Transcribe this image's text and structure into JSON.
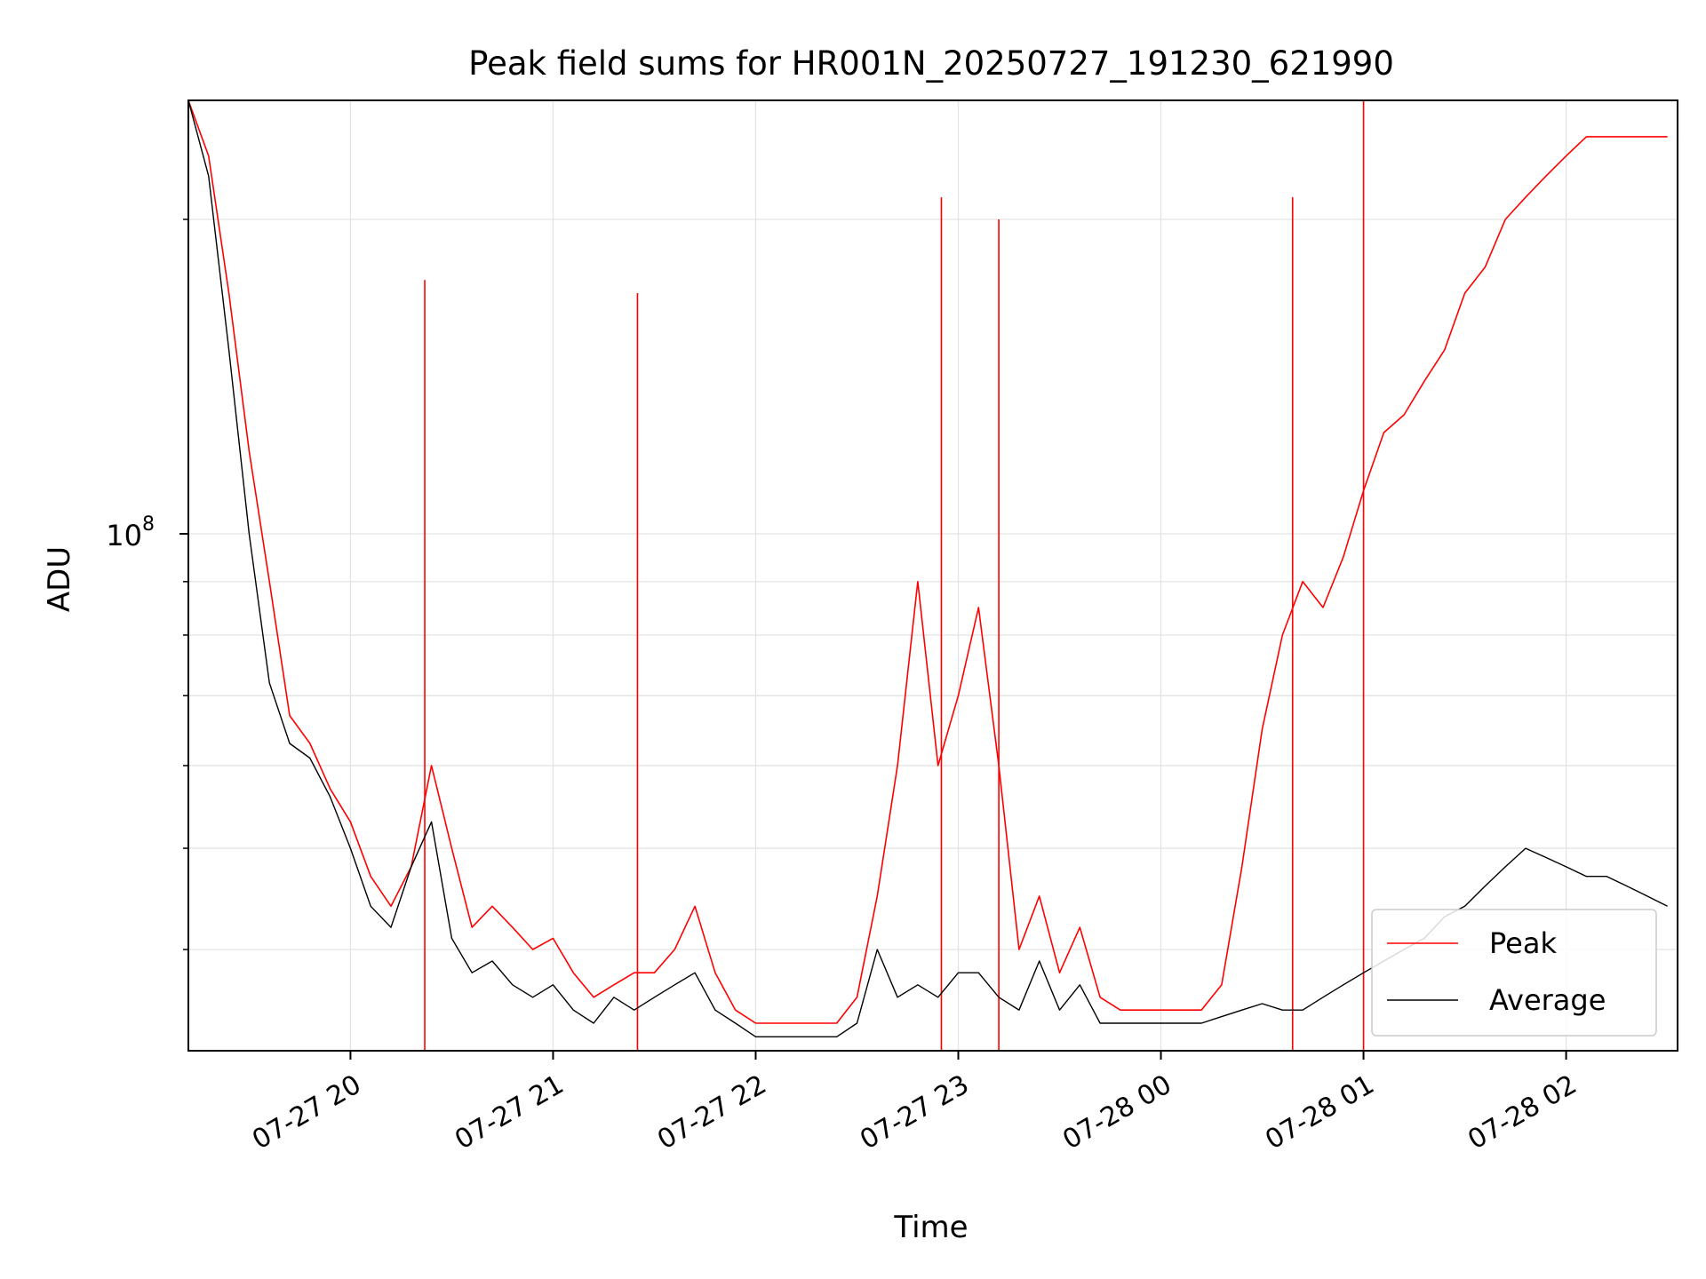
{
  "chart_data": {
    "type": "line",
    "title": "Peak field sums for HR001N_20250727_191230_621990",
    "xlabel": "Time",
    "ylabel": "ADU",
    "y_scale": "log",
    "grid": true,
    "legend_placement": "lower-right",
    "xlim": [
      "2025-07-27 19:12",
      "2025-07-28 02:33"
    ],
    "ylim": [
      32000000,
      260000000
    ],
    "x_ticks": [
      {
        "value": "2025-07-27 20:00",
        "label": "07-27 20"
      },
      {
        "value": "2025-07-27 21:00",
        "label": "07-27 21"
      },
      {
        "value": "2025-07-27 22:00",
        "label": "07-27 22"
      },
      {
        "value": "2025-07-27 23:00",
        "label": "07-27 23"
      },
      {
        "value": "2025-07-28 00:00",
        "label": "07-28 00"
      },
      {
        "value": "2025-07-28 01:00",
        "label": "07-28 01"
      },
      {
        "value": "2025-07-28 02:00",
        "label": "07-28 02"
      }
    ],
    "y_major_ticks": [
      {
        "value": 100000000,
        "label_base": "10",
        "label_exp": "8"
      }
    ],
    "y_minor_ticks": [
      40000000,
      50000000,
      60000000,
      70000000,
      80000000,
      90000000,
      200000000
    ],
    "series": [
      {
        "name": "Peak",
        "color": "#ff0000",
        "x": [
          "2025-07-27 19:12",
          "2025-07-27 19:18",
          "2025-07-27 19:24",
          "2025-07-27 19:30",
          "2025-07-27 19:36",
          "2025-07-27 19:42",
          "2025-07-27 19:48",
          "2025-07-27 19:54",
          "2025-07-27 20:00",
          "2025-07-27 20:06",
          "2025-07-27 20:12",
          "2025-07-27 20:18",
          "2025-07-27 20:24",
          "2025-07-27 20:30",
          "2025-07-27 20:36",
          "2025-07-27 20:42",
          "2025-07-27 20:48",
          "2025-07-27 20:54",
          "2025-07-27 21:00",
          "2025-07-27 21:06",
          "2025-07-27 21:12",
          "2025-07-27 21:18",
          "2025-07-27 21:24",
          "2025-07-27 21:30",
          "2025-07-27 21:36",
          "2025-07-27 21:42",
          "2025-07-27 21:48",
          "2025-07-27 21:54",
          "2025-07-27 22:00",
          "2025-07-27 22:06",
          "2025-07-27 22:12",
          "2025-07-27 22:18",
          "2025-07-27 22:24",
          "2025-07-27 22:30",
          "2025-07-27 22:36",
          "2025-07-27 22:42",
          "2025-07-27 22:48",
          "2025-07-27 22:54",
          "2025-07-27 23:00",
          "2025-07-27 23:06",
          "2025-07-27 23:12",
          "2025-07-27 23:18",
          "2025-07-27 23:24",
          "2025-07-27 23:30",
          "2025-07-27 23:36",
          "2025-07-27 23:42",
          "2025-07-27 23:48",
          "2025-07-27 23:54",
          "2025-07-28 00:00",
          "2025-07-28 00:06",
          "2025-07-28 00:12",
          "2025-07-28 00:18",
          "2025-07-28 00:24",
          "2025-07-28 00:30",
          "2025-07-28 00:36",
          "2025-07-28 00:42",
          "2025-07-28 00:48",
          "2025-07-28 00:54",
          "2025-07-28 01:00",
          "2025-07-28 01:06",
          "2025-07-28 01:12",
          "2025-07-28 01:18",
          "2025-07-28 01:24",
          "2025-07-28 01:30",
          "2025-07-28 01:36",
          "2025-07-28 01:42",
          "2025-07-28 01:48",
          "2025-07-28 01:54",
          "2025-07-28 02:00",
          "2025-07-28 02:06",
          "2025-07-28 02:12",
          "2025-07-28 02:18",
          "2025-07-28 02:24",
          "2025-07-28 02:30"
        ],
        "y": [
          260000000,
          230000000,
          170000000,
          120000000,
          90000000,
          67000000,
          63000000,
          57000000,
          53000000,
          47000000,
          44000000,
          48000000,
          60000000,
          50000000,
          42000000,
          44000000,
          42000000,
          40000000,
          41000000,
          38000000,
          36000000,
          37000000,
          38000000,
          38000000,
          40000000,
          44000000,
          38000000,
          35000000,
          34000000,
          34000000,
          34000000,
          34000000,
          34000000,
          36000000,
          45000000,
          60000000,
          90000000,
          60000000,
          70000000,
          85000000,
          60000000,
          40000000,
          45000000,
          38000000,
          42000000,
          36000000,
          35000000,
          35000000,
          35000000,
          35000000,
          35000000,
          37000000,
          48000000,
          65000000,
          80000000,
          90000000,
          85000000,
          95000000,
          110000000,
          125000000,
          130000000,
          140000000,
          150000000,
          170000000,
          180000000,
          200000000,
          210000000,
          220000000,
          230000000,
          240000000,
          240000000,
          240000000,
          240000000,
          240000000
        ],
        "highlights": [
          {
            "x": "2025-07-27 20:22",
            "y": 175000000
          },
          {
            "x": "2025-07-27 21:25",
            "y": 170000000
          },
          {
            "x": "2025-07-27 22:55",
            "y": 210000000
          },
          {
            "x": "2025-07-27 23:12",
            "y": 200000000
          },
          {
            "x": "2025-07-28 00:39",
            "y": 210000000
          },
          {
            "x": "2025-07-28 01:00",
            "y": 260000000
          }
        ]
      },
      {
        "name": "Average",
        "color": "#000000",
        "x": [
          "2025-07-27 19:12",
          "2025-07-27 19:18",
          "2025-07-27 19:24",
          "2025-07-27 19:30",
          "2025-07-27 19:36",
          "2025-07-27 19:42",
          "2025-07-27 19:48",
          "2025-07-27 19:54",
          "2025-07-27 20:00",
          "2025-07-27 20:06",
          "2025-07-27 20:12",
          "2025-07-27 20:18",
          "2025-07-27 20:24",
          "2025-07-27 20:30",
          "2025-07-27 20:36",
          "2025-07-27 20:42",
          "2025-07-27 20:48",
          "2025-07-27 20:54",
          "2025-07-27 21:00",
          "2025-07-27 21:06",
          "2025-07-27 21:12",
          "2025-07-27 21:18",
          "2025-07-27 21:24",
          "2025-07-27 21:30",
          "2025-07-27 21:36",
          "2025-07-27 21:42",
          "2025-07-27 21:48",
          "2025-07-27 21:54",
          "2025-07-27 22:00",
          "2025-07-27 22:06",
          "2025-07-27 22:12",
          "2025-07-27 22:18",
          "2025-07-27 22:24",
          "2025-07-27 22:30",
          "2025-07-27 22:36",
          "2025-07-27 22:42",
          "2025-07-27 22:48",
          "2025-07-27 22:54",
          "2025-07-27 23:00",
          "2025-07-27 23:06",
          "2025-07-27 23:12",
          "2025-07-27 23:18",
          "2025-07-27 23:24",
          "2025-07-27 23:30",
          "2025-07-27 23:36",
          "2025-07-27 23:42",
          "2025-07-27 23:48",
          "2025-07-27 23:54",
          "2025-07-28 00:00",
          "2025-07-28 00:06",
          "2025-07-28 00:12",
          "2025-07-28 00:18",
          "2025-07-28 00:24",
          "2025-07-28 00:30",
          "2025-07-28 00:36",
          "2025-07-28 00:42",
          "2025-07-28 00:48",
          "2025-07-28 00:54",
          "2025-07-28 01:00",
          "2025-07-28 01:06",
          "2025-07-28 01:12",
          "2025-07-28 01:18",
          "2025-07-28 01:24",
          "2025-07-28 01:30",
          "2025-07-28 01:36",
          "2025-07-28 01:42",
          "2025-07-28 01:48",
          "2025-07-28 01:54",
          "2025-07-28 02:00",
          "2025-07-28 02:06",
          "2025-07-28 02:12",
          "2025-07-28 02:18",
          "2025-07-28 02:24",
          "2025-07-28 02:30"
        ],
        "y": [
          260000000,
          220000000,
          150000000,
          100000000,
          72000000,
          63000000,
          61000000,
          56000000,
          50000000,
          44000000,
          42000000,
          48000000,
          53000000,
          41000000,
          38000000,
          39000000,
          37000000,
          36000000,
          37000000,
          35000000,
          34000000,
          36000000,
          35000000,
          36000000,
          37000000,
          38000000,
          35000000,
          34000000,
          33000000,
          33000000,
          33000000,
          33000000,
          33000000,
          34000000,
          40000000,
          36000000,
          37000000,
          36000000,
          38000000,
          38000000,
          36000000,
          35000000,
          39000000,
          35000000,
          37000000,
          34000000,
          34000000,
          34000000,
          34000000,
          34000000,
          34000000,
          34500000,
          35000000,
          35500000,
          35000000,
          35000000,
          36000000,
          37000000,
          38000000,
          39000000,
          40000000,
          41000000,
          43000000,
          44000000,
          46000000,
          48000000,
          50000000,
          49000000,
          48000000,
          47000000,
          47000000,
          46000000,
          45000000,
          44000000
        ]
      }
    ],
    "legend": [
      {
        "label": "Peak",
        "color": "#ff0000"
      },
      {
        "label": "Average",
        "color": "#000000"
      }
    ]
  }
}
